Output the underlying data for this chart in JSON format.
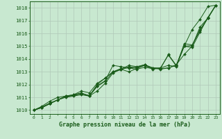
{
  "xlabel": "Graphe pression niveau de la mer (hPa)",
  "ylim": [
    1009.7,
    1018.5
  ],
  "xlim": [
    -0.5,
    23.5
  ],
  "yticks": [
    1010,
    1011,
    1012,
    1013,
    1014,
    1015,
    1016,
    1017,
    1018
  ],
  "xticks": [
    0,
    1,
    2,
    3,
    4,
    5,
    6,
    7,
    8,
    9,
    10,
    11,
    12,
    13,
    14,
    15,
    16,
    17,
    18,
    19,
    20,
    21,
    22,
    23
  ],
  "xtick_labels": [
    "0",
    "1",
    "2",
    "",
    "4",
    "5",
    "6",
    "7",
    "8",
    "9",
    "10",
    "11",
    "12",
    "13",
    "14",
    "15",
    "16",
    "17",
    "18",
    "19",
    "20",
    "21",
    "22",
    "23"
  ],
  "background_color": "#c8e8d0",
  "grid_color": "#b0c8b8",
  "line_color": "#1a5c1a",
  "series": [
    [
      1010.0,
      1010.2,
      1010.5,
      1010.8,
      1011.0,
      1011.1,
      1011.2,
      1011.1,
      1011.5,
      1012.1,
      1012.9,
      1013.2,
      1013.0,
      1013.25,
      1013.5,
      1013.3,
      1013.2,
      1013.3,
      1013.5,
      1015.0,
      1016.3,
      1017.1,
      1018.1,
      1018.2
    ],
    [
      1010.0,
      1010.2,
      1010.5,
      1010.8,
      1011.05,
      1011.15,
      1011.3,
      1011.15,
      1011.9,
      1012.3,
      1013.5,
      1013.4,
      1013.3,
      1013.35,
      1013.55,
      1013.3,
      1013.25,
      1014.35,
      1013.5,
      1015.0,
      1014.9,
      1016.1,
      1017.25,
      1018.2
    ],
    [
      1010.0,
      1010.2,
      1010.5,
      1010.8,
      1011.05,
      1011.15,
      1011.3,
      1011.1,
      1011.85,
      1012.25,
      1013.0,
      1013.25,
      1013.3,
      1013.2,
      1013.35,
      1013.25,
      1013.25,
      1013.3,
      1013.55,
      1014.35,
      1015.0,
      1016.5,
      1017.2,
      1018.2
    ],
    [
      1010.0,
      1010.25,
      1010.55,
      1010.8,
      1011.1,
      1011.2,
      1011.35,
      1011.1,
      1012.0,
      1012.5,
      1013.0,
      1013.2,
      1013.5,
      1013.4,
      1013.55,
      1013.3,
      1013.3,
      1014.3,
      1013.45,
      1015.2,
      1015.1,
      1016.2,
      1017.2,
      1018.2
    ],
    [
      1010.0,
      1010.3,
      1010.7,
      1011.0,
      1011.1,
      1011.2,
      1011.5,
      1011.35,
      1012.1,
      1012.5,
      1013.0,
      1013.15,
      1013.4,
      1013.3,
      1013.5,
      1013.2,
      1013.3,
      1013.5,
      1013.4,
      1015.0,
      1015.05,
      1016.3,
      1017.2,
      1018.2
    ]
  ]
}
